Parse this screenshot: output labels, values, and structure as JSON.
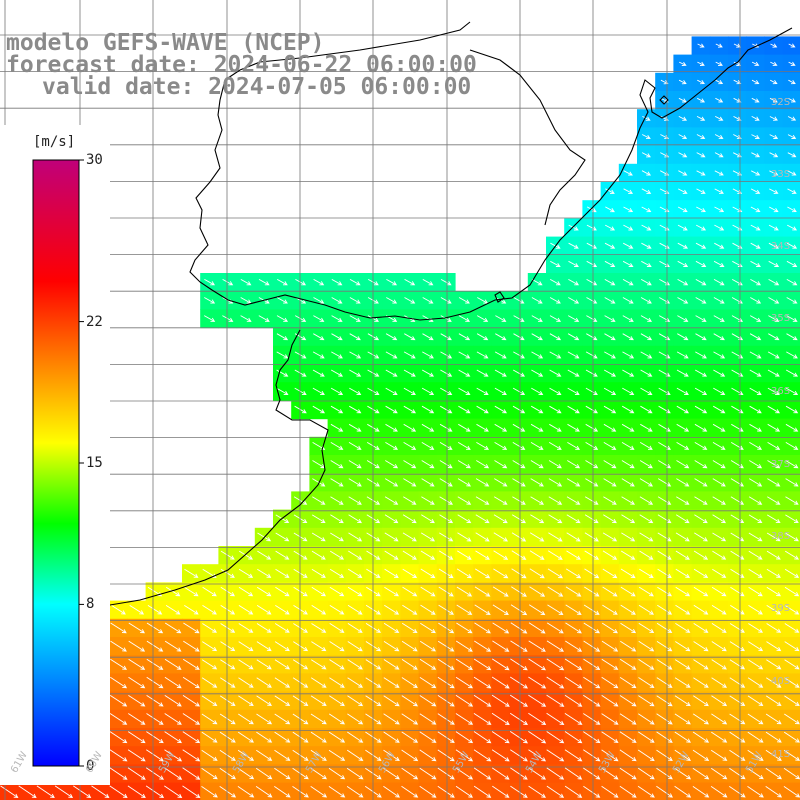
{
  "title": {
    "line1": "modelo GEFS-WAVE (NCEP)",
    "line2": "forecast date: 2024-06-22 06:00:00",
    "line3": "valid date: 2024-07-05 06:00:00"
  },
  "colorbar": {
    "unit": "[m/s]",
    "tick_labels": [
      "30",
      "22",
      "15",
      "8",
      "0"
    ],
    "tick_values": [
      30,
      22,
      15,
      8,
      0
    ],
    "min": 0,
    "max": 30,
    "colors": [
      "#0000ff",
      "#00ffff",
      "#00ff00",
      "#ffff00",
      "#ff8000",
      "#ff0000",
      "#c0007a"
    ],
    "color_stops": [
      0,
      8,
      12,
      16,
      20,
      24,
      30
    ]
  },
  "map": {
    "region": "Rio de la Plata / South-West Atlantic",
    "lat_labels": [
      "32S",
      "33S",
      "34S",
      "35S",
      "36S",
      "37S",
      "38S",
      "39S",
      "40S",
      "41S"
    ],
    "lon_labels": [
      "61W",
      "60W",
      "59W",
      "58W",
      "57W",
      "56W",
      "55W",
      "54W",
      "53W",
      "52W",
      "51W"
    ],
    "grid": true,
    "land_color": "#ffffff",
    "coast_color": "#000000",
    "arrow_color": "#ffffff",
    "field": "wind speed with direction arrows"
  }
}
